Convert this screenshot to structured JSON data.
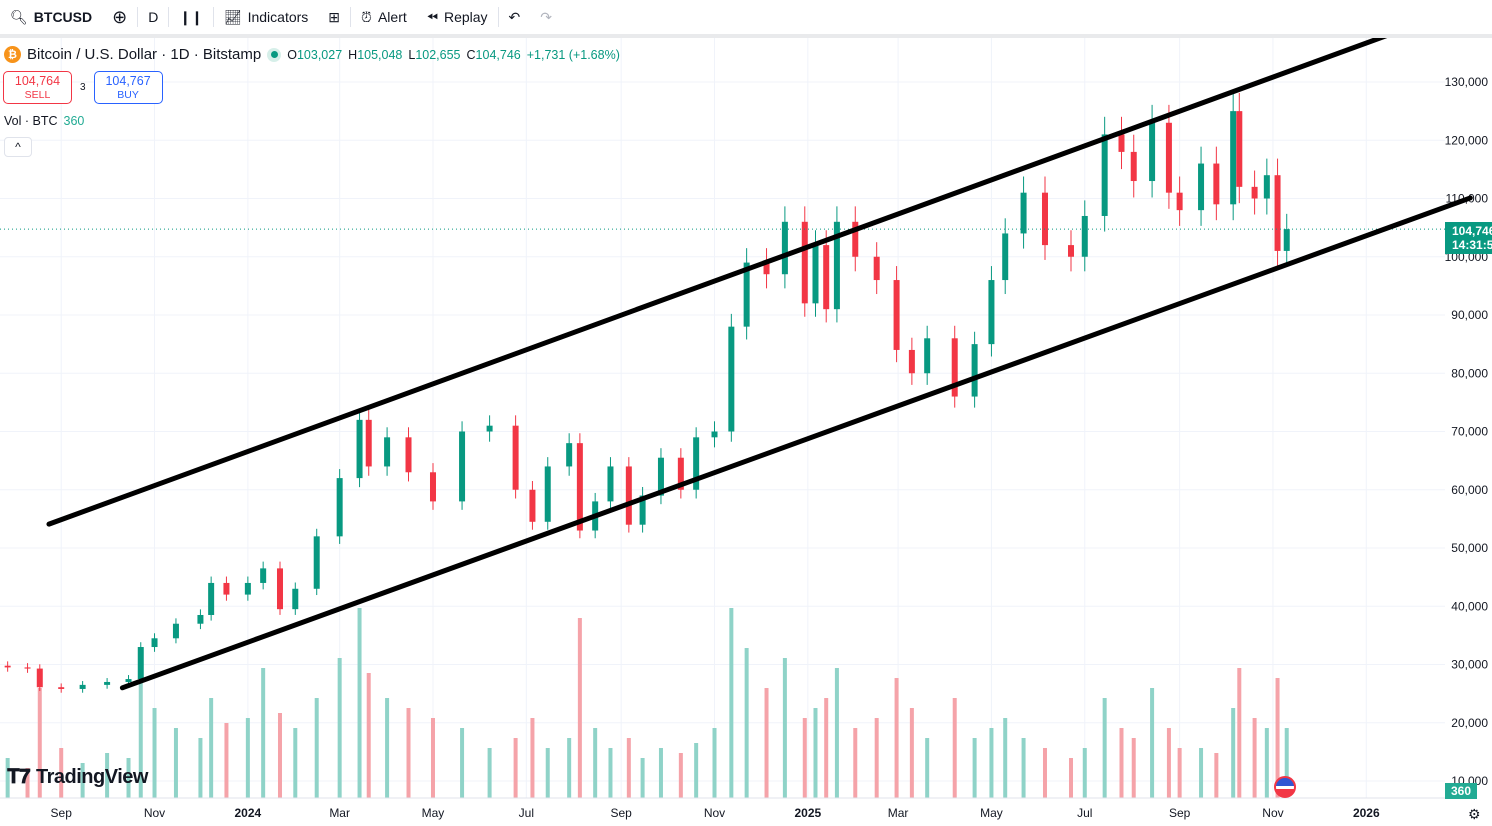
{
  "toolbar": {
    "symbol": "BTCUSD",
    "interval": "D",
    "indicators": "Indicators",
    "alert": "Alert",
    "replay": "Replay"
  },
  "legend": {
    "title": "Bitcoin / U.S. Dollar · 1D · Bitstamp",
    "o_label": "O",
    "o": "103,027",
    "h_label": "H",
    "h": "105,048",
    "l_label": "L",
    "l": "102,655",
    "c_label": "C",
    "c": "104,746",
    "change": "+1,731 (+1.68%)"
  },
  "trade": {
    "sell_price": "104,764",
    "sell_label": "SELL",
    "spread": "3",
    "buy_price": "104,767",
    "buy_label": "BUY"
  },
  "volume": {
    "label": "Vol · BTC",
    "value": "360"
  },
  "collapse": "^",
  "logo": "TradingView",
  "price_label": {
    "price": "104,746",
    "countdown": "14:31:5"
  },
  "volume_label": "360",
  "colors": {
    "up": "#089981",
    "down": "#f23645",
    "trendline": "#000000",
    "up_vol": "#8fd3c8",
    "down_vol": "#f5a3a9"
  },
  "chart_data": {
    "type": "candlestick",
    "title": "Bitcoin / U.S. Dollar · 1D · Bitstamp",
    "ylim": [
      0,
      135000
    ],
    "y_ticks": [
      "130,000",
      "120,000",
      "110,000",
      "100,000",
      "90,000",
      "80,000",
      "70,000",
      "60,000",
      "50,000",
      "40,000",
      "30,000",
      "20,000",
      "10,000"
    ],
    "y_tick_values": [
      130000,
      120000,
      110000,
      100000,
      90000,
      80000,
      70000,
      60000,
      50000,
      40000,
      30000,
      20000,
      10000
    ],
    "x_ticks": [
      {
        "label": "Sep",
        "date": "2023-09-01"
      },
      {
        "label": "Nov",
        "date": "2023-11-01"
      },
      {
        "label": "2024",
        "date": "2024-01-01",
        "bold": true
      },
      {
        "label": "Mar",
        "date": "2024-03-01"
      },
      {
        "label": "May",
        "date": "2024-05-01"
      },
      {
        "label": "Jul",
        "date": "2024-07-01"
      },
      {
        "label": "Sep",
        "date": "2024-09-01"
      },
      {
        "label": "Nov",
        "date": "2024-11-01"
      },
      {
        "label": "2025",
        "date": "2025-01-01",
        "bold": true
      },
      {
        "label": "Mar",
        "date": "2025-03-01"
      },
      {
        "label": "May",
        "date": "2025-05-01"
      },
      {
        "label": "Jul",
        "date": "2025-07-01"
      },
      {
        "label": "Sep",
        "date": "2025-09-01"
      },
      {
        "label": "Nov",
        "date": "2025-11-01"
      },
      {
        "label": "2026",
        "date": "2026-01-01",
        "bold": true
      }
    ],
    "dates": [
      "2023-07-28",
      "2023-08-10",
      "2023-08-18",
      "2023-09-01",
      "2023-09-15",
      "2023-10-01",
      "2023-10-15",
      "2023-10-23",
      "2023-11-01",
      "2023-11-15",
      "2023-12-01",
      "2023-12-08",
      "2023-12-18",
      "2024-01-01",
      "2024-01-11",
      "2024-01-22",
      "2024-02-01",
      "2024-02-15",
      "2024-03-01",
      "2024-03-14",
      "2024-03-20",
      "2024-04-01",
      "2024-04-15",
      "2024-05-01",
      "2024-05-20",
      "2024-06-07",
      "2024-06-24",
      "2024-07-05",
      "2024-07-15",
      "2024-07-29",
      "2024-08-05",
      "2024-08-15",
      "2024-08-25",
      "2024-09-06",
      "2024-09-15",
      "2024-09-27",
      "2024-10-10",
      "2024-10-20",
      "2024-11-01",
      "2024-11-12",
      "2024-11-22",
      "2024-12-05",
      "2024-12-17",
      "2024-12-30",
      "2025-01-06",
      "2025-01-13",
      "2025-01-20",
      "2025-02-01",
      "2025-02-15",
      "2025-02-28",
      "2025-03-10",
      "2025-03-20",
      "2025-04-07",
      "2025-04-20",
      "2025-05-01",
      "2025-05-10",
      "2025-05-22",
      "2025-06-05",
      "2025-06-22",
      "2025-07-01",
      "2025-07-14",
      "2025-07-25",
      "2025-08-02",
      "2025-08-14",
      "2025-08-25",
      "2025-09-01",
      "2025-09-15",
      "2025-09-25",
      "2025-10-06",
      "2025-10-10",
      "2025-10-20",
      "2025-10-28",
      "2025-11-04",
      "2025-11-10"
    ],
    "close": [
      29500,
      29300,
      26100,
      25800,
      26500,
      27000,
      27500,
      33000,
      34500,
      37000,
      38500,
      44000,
      42000,
      44000,
      46500,
      39500,
      43000,
      52000,
      62000,
      72000,
      64000,
      69000,
      63000,
      58000,
      70000,
      71000,
      60000,
      54500,
      64000,
      68000,
      53000,
      58000,
      64000,
      54000,
      59000,
      65500,
      60000,
      69000,
      70000,
      88000,
      99000,
      97000,
      106000,
      92000,
      102000,
      91000,
      106000,
      100000,
      96000,
      84000,
      80000,
      86000,
      76000,
      85000,
      96000,
      104000,
      111000,
      102000,
      100000,
      107000,
      121000,
      118000,
      113000,
      123000,
      111000,
      108000,
      116000,
      109000,
      125000,
      112000,
      110000,
      114000,
      101000,
      104746
    ],
    "volume": [
      8,
      6,
      22,
      10,
      7,
      9,
      8,
      24,
      18,
      14,
      12,
      20,
      15,
      16,
      26,
      17,
      14,
      20,
      28,
      38,
      25,
      20,
      18,
      16,
      14,
      10,
      12,
      16,
      10,
      12,
      36,
      14,
      10,
      12,
      8,
      10,
      9,
      11,
      14,
      38,
      30,
      22,
      28,
      16,
      18,
      20,
      26,
      14,
      16,
      24,
      18,
      12,
      20,
      12,
      14,
      16,
      12,
      10,
      8,
      10,
      20,
      14,
      12,
      22,
      14,
      10,
      10,
      9,
      18,
      26,
      16,
      14,
      24,
      14
    ],
    "trendlines": [
      {
        "from": {
          "date": "2023-08-24",
          "price": 54100
        },
        "to": {
          "date": "2026-01-23",
          "price": 138800
        }
      },
      {
        "from": {
          "date": "2023-10-11",
          "price": 26000
        },
        "to": {
          "date": "2026-03-10",
          "price": 110100
        }
      }
    ],
    "last_price": 104746
  }
}
